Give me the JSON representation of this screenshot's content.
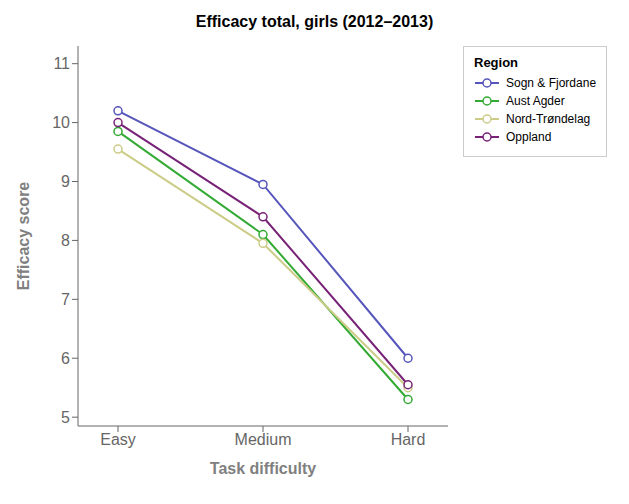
{
  "chart_data": {
    "type": "line",
    "title": "Efficacy total, girls (2012–2013)",
    "x_label": "Task difficulty",
    "y_label": "Efficacy score",
    "categories": [
      "Easy",
      "Medium",
      "Hard"
    ],
    "series": [
      {
        "name": "Sogn & Fjordane",
        "color": "#5555bb",
        "values": [
          10.2,
          8.95,
          6.0
        ]
      },
      {
        "name": "Aust Agder",
        "color": "#33aa33",
        "values": [
          9.85,
          8.1,
          5.3
        ]
      },
      {
        "name": "Nord-Trøndelag",
        "color": "#cccc88",
        "values": [
          9.55,
          7.95,
          5.5
        ]
      },
      {
        "name": "Oppland",
        "color": "#772277",
        "values": [
          10.0,
          8.4,
          5.55
        ]
      }
    ],
    "ylim": [
      4.85,
      11.3
    ],
    "yticks": [
      5,
      6,
      7,
      8,
      9,
      10,
      11
    ],
    "grid": false,
    "legend": "right",
    "legend_title": "Region",
    "marker": "circle"
  }
}
